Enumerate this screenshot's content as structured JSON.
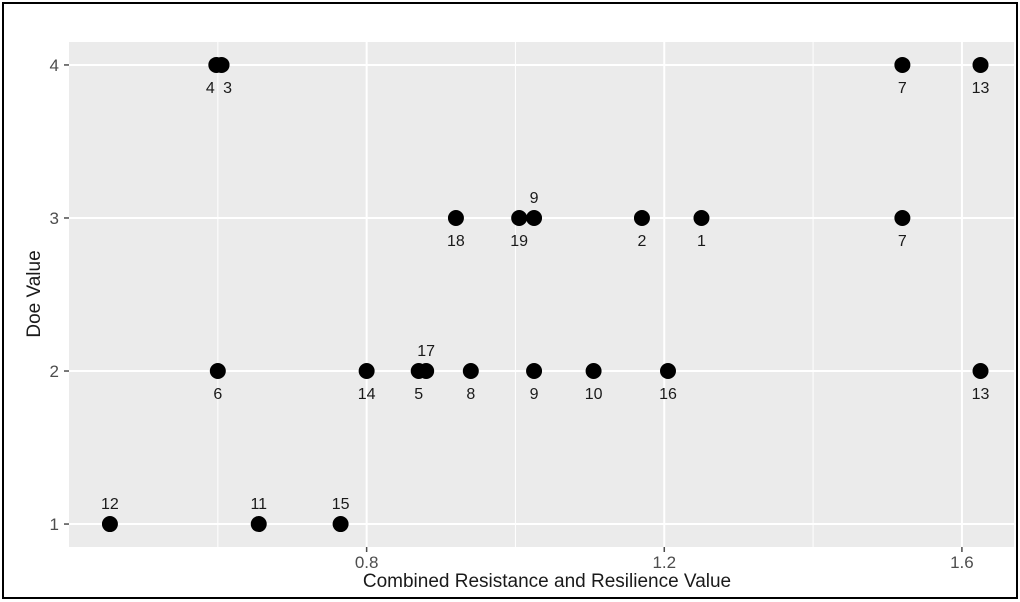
{
  "chart_data": {
    "type": "scatter",
    "title": "",
    "xlabel": "Combined Resistance and Resilience Value",
    "ylabel": "Doe Value",
    "xlim": [
      0.4,
      1.67
    ],
    "ylim": [
      0.85,
      4.15
    ],
    "x_ticks": [
      0.8,
      1.2,
      1.6
    ],
    "x_tick_labels": [
      "0.8",
      "1.2",
      "1.6"
    ],
    "y_ticks": [
      1,
      2,
      3,
      4
    ],
    "y_tick_labels": [
      "1",
      "2",
      "3",
      "4"
    ],
    "grid": true,
    "background": "#ebebeb",
    "gridline_color": "#ffffff",
    "point_color": "#000000",
    "points": [
      {
        "x": 0.598,
        "y": 4,
        "label": "4",
        "label_pos": "below"
      },
      {
        "x": 0.605,
        "y": 4,
        "label": "3",
        "label_pos": "below"
      },
      {
        "x": 1.52,
        "y": 4,
        "label": "7",
        "label_pos": "below"
      },
      {
        "x": 1.625,
        "y": 4,
        "label": "13",
        "label_pos": "below"
      },
      {
        "x": 0.92,
        "y": 3,
        "label": "18",
        "label_pos": "below"
      },
      {
        "x": 1.005,
        "y": 3,
        "label": "19",
        "label_pos": "below"
      },
      {
        "x": 1.025,
        "y": 3,
        "label": "9",
        "label_pos": "above"
      },
      {
        "x": 1.17,
        "y": 3,
        "label": "2",
        "label_pos": "below"
      },
      {
        "x": 1.25,
        "y": 3,
        "label": "1",
        "label_pos": "below"
      },
      {
        "x": 1.52,
        "y": 3,
        "label": "7",
        "label_pos": "below"
      },
      {
        "x": 0.6,
        "y": 2,
        "label": "6",
        "label_pos": "below"
      },
      {
        "x": 0.8,
        "y": 2,
        "label": "14",
        "label_pos": "below"
      },
      {
        "x": 0.87,
        "y": 2,
        "label": "5",
        "label_pos": "below"
      },
      {
        "x": 0.88,
        "y": 2,
        "label": "17",
        "label_pos": "above"
      },
      {
        "x": 0.94,
        "y": 2,
        "label": "8",
        "label_pos": "below"
      },
      {
        "x": 1.025,
        "y": 2,
        "label": "9",
        "label_pos": "below"
      },
      {
        "x": 1.105,
        "y": 2,
        "label": "10",
        "label_pos": "below"
      },
      {
        "x": 1.205,
        "y": 2,
        "label": "16",
        "label_pos": "below"
      },
      {
        "x": 1.625,
        "y": 2,
        "label": "13",
        "label_pos": "below"
      },
      {
        "x": 0.455,
        "y": 1,
        "label": "12",
        "label_pos": "above"
      },
      {
        "x": 0.655,
        "y": 1,
        "label": "11",
        "label_pos": "above"
      },
      {
        "x": 0.765,
        "y": 1,
        "label": "15",
        "label_pos": "above"
      }
    ]
  }
}
